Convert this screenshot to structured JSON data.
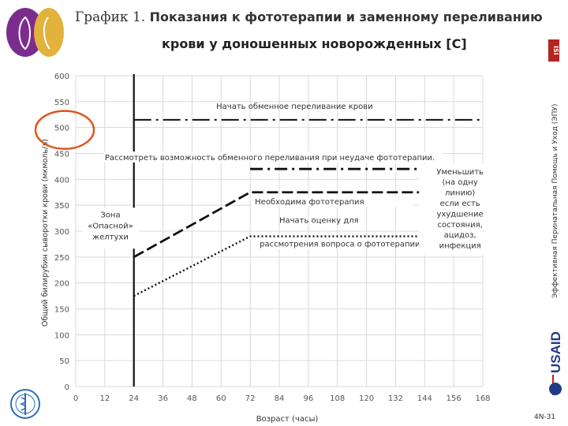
{
  "header": {
    "title_prefix": "График 1.",
    "title_line1": "Показания к фототерапии и заменному переливанию",
    "title_line2": "крови  у доношенных новорожденных [C]"
  },
  "side_text": "Эффективная Перинатальная Помощь и Уход (ЭПУ)",
  "isi_badge": "ISI",
  "usaid_text": "USAID",
  "page_number": "4N-31",
  "colors": {
    "accent_circle": "#e0561d",
    "logo_purple": "#7b2d8e",
    "logo_gold": "#e3b23c",
    "badge_red": "#b3261e"
  },
  "chart_data": {
    "type": "line",
    "xlabel": "Возраст (часы)",
    "ylabel": "Общий билирубин сыворотки крови (мкмоль/л)",
    "xlim": [
      0,
      168
    ],
    "ylim": [
      0,
      600
    ],
    "x_ticks": [
      "0",
      "12",
      "24",
      "36",
      "48",
      "60",
      "72",
      "84",
      "96",
      "108",
      "120",
      "132",
      "144",
      "156",
      "168"
    ],
    "y_ticks": [
      "0",
      "50",
      "100",
      "150",
      "200",
      "250",
      "300",
      "350",
      "400",
      "450",
      "500",
      "550",
      "600"
    ],
    "grid": true,
    "series": [
      {
        "name": "Начать обменное переливание крови",
        "style": "dashdot",
        "points": [
          [
            24,
            515
          ],
          [
            168,
            515
          ]
        ]
      },
      {
        "name": "Рассмотреть возможность обменного переливания при неудаче фототерапии.",
        "style": "dashdot-bold",
        "points": [
          [
            72,
            420
          ],
          [
            168,
            420
          ]
        ]
      },
      {
        "name": "Необходима фототерапия",
        "style": "dashed",
        "points": [
          [
            24,
            250
          ],
          [
            72,
            375
          ],
          [
            168,
            375
          ]
        ]
      },
      {
        "name": "Начать оценку для рассмотрения вопроса о фототерапии",
        "style": "dotted",
        "points": [
          [
            24,
            175
          ],
          [
            72,
            290
          ],
          [
            168,
            290
          ]
        ]
      }
    ],
    "vline_at": 24,
    "annotations": {
      "exchange": "Начать обменное переливание крови",
      "consider": "Рассмотреть возможность обменного переливания при неудаче фототерапии.",
      "photo_needed": "Необходима фототерапия",
      "start_eval_1": "Начать оценку для",
      "start_eval_2": "рассмотрения вопроса о фототерапии",
      "danger_zone": [
        "Зона",
        "«Опасной»",
        "желтухи"
      ],
      "reduce": [
        "Уменьшить",
        "(на одну",
        "линию)",
        "если есть",
        "ухудшение",
        "состояния,",
        "ацидоз,",
        "инфекция"
      ]
    }
  }
}
